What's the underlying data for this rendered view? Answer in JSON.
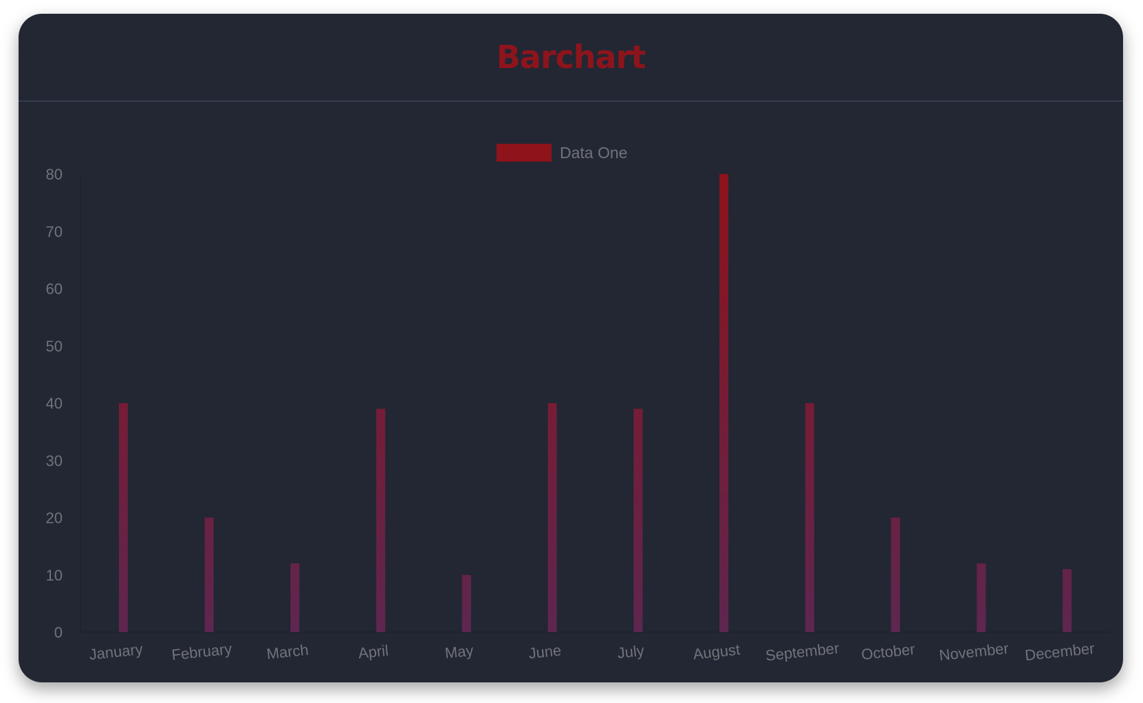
{
  "header": {
    "title": "Barchart"
  },
  "chart_data": {
    "type": "bar",
    "title": "",
    "categories": [
      "January",
      "February",
      "March",
      "April",
      "May",
      "June",
      "July",
      "August",
      "September",
      "October",
      "November",
      "December"
    ],
    "series": [
      {
        "name": "Data One",
        "values": [
          40,
          20,
          12,
          39,
          10,
          40,
          39,
          80,
          40,
          20,
          12,
          11
        ]
      }
    ],
    "ylim": [
      0,
      80
    ],
    "yticks": [
      "0",
      "10",
      "20",
      "30",
      "40",
      "50",
      "60",
      "70",
      "80"
    ],
    "xlabel": "",
    "ylabel": "",
    "grid": false,
    "legend": "top-center",
    "colors": {
      "bar_top": "#8e131b",
      "bar_bottom": "#5e2650",
      "legend_swatch": "#8e131b",
      "background": "#222733",
      "title": "#8e141c",
      "text": "#70737a"
    }
  }
}
